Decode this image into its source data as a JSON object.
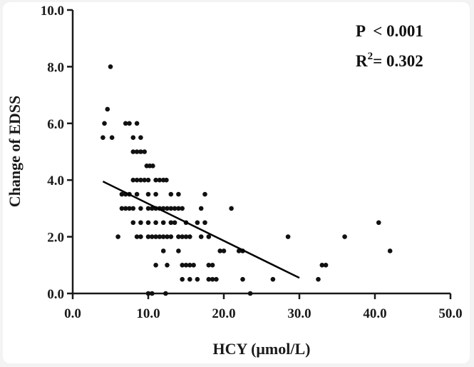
{
  "chart_data": {
    "type": "scatter",
    "xlabel": "HCY (μmol/L)",
    "ylabel": "Change of EDSS",
    "xlim": [
      0,
      50
    ],
    "ylim": [
      0,
      10
    ],
    "x_ticks": [
      0,
      10,
      20,
      30,
      40,
      50
    ],
    "y_ticks": [
      0,
      2,
      4,
      6,
      8,
      10
    ],
    "x_tick_labels": [
      "0.0",
      "10.0",
      "20.0",
      "30.0",
      "40.0",
      "50.0"
    ],
    "y_tick_labels": [
      "0.0",
      "2.0",
      "4.0",
      "6.0",
      "8.0",
      "10.0"
    ],
    "grid": false,
    "annotations": {
      "p_value": "P  < 0.001",
      "r2_prefix": "R",
      "r2_sup": "2",
      "r2_value": "= 0.302"
    },
    "regression_line": {
      "x": [
        4.0,
        30.0
      ],
      "y": [
        3.95,
        0.55
      ]
    },
    "points": [
      [
        5.0,
        8.0
      ],
      [
        4.6,
        6.5
      ],
      [
        4.2,
        6.0
      ],
      [
        4.0,
        5.5
      ],
      [
        5.2,
        5.5
      ],
      [
        7.0,
        6.0
      ],
      [
        7.5,
        6.0
      ],
      [
        8.5,
        6.0
      ],
      [
        8.0,
        5.5
      ],
      [
        9.0,
        5.5
      ],
      [
        8.5,
        5.0
      ],
      [
        9.0,
        5.0
      ],
      [
        9.5,
        5.0
      ],
      [
        8.0,
        5.0
      ],
      [
        9.8,
        4.5
      ],
      [
        10.2,
        4.5
      ],
      [
        10.6,
        4.5
      ],
      [
        8.0,
        4.0
      ],
      [
        8.5,
        4.0
      ],
      [
        9.0,
        4.0
      ],
      [
        9.5,
        4.0
      ],
      [
        10.0,
        4.0
      ],
      [
        11.0,
        4.0
      ],
      [
        11.5,
        4.0
      ],
      [
        12.0,
        4.0
      ],
      [
        12.4,
        4.0
      ],
      [
        6.5,
        3.5
      ],
      [
        7.0,
        3.5
      ],
      [
        7.5,
        3.5
      ],
      [
        8.5,
        3.5
      ],
      [
        10.0,
        3.5
      ],
      [
        11.0,
        3.5
      ],
      [
        13.0,
        3.5
      ],
      [
        14.0,
        3.5
      ],
      [
        17.5,
        3.5
      ],
      [
        6.5,
        3.0
      ],
      [
        7.0,
        3.0
      ],
      [
        7.5,
        3.0
      ],
      [
        8.0,
        3.0
      ],
      [
        9.0,
        3.0
      ],
      [
        10.0,
        3.0
      ],
      [
        10.5,
        3.0
      ],
      [
        11.0,
        3.0
      ],
      [
        11.5,
        3.0
      ],
      [
        12.0,
        3.0
      ],
      [
        12.5,
        3.0
      ],
      [
        13.0,
        3.0
      ],
      [
        13.5,
        3.0
      ],
      [
        14.0,
        3.0
      ],
      [
        14.5,
        3.0
      ],
      [
        17.0,
        3.0
      ],
      [
        21.0,
        3.0
      ],
      [
        8.0,
        2.5
      ],
      [
        9.0,
        2.5
      ],
      [
        10.0,
        2.5
      ],
      [
        11.0,
        2.5
      ],
      [
        12.0,
        2.5
      ],
      [
        13.0,
        2.5
      ],
      [
        13.5,
        2.5
      ],
      [
        15.0,
        2.5
      ],
      [
        16.5,
        2.5
      ],
      [
        17.5,
        2.5
      ],
      [
        6.0,
        2.0
      ],
      [
        8.5,
        2.0
      ],
      [
        9.0,
        2.0
      ],
      [
        10.0,
        2.0
      ],
      [
        10.5,
        2.0
      ],
      [
        11.0,
        2.0
      ],
      [
        11.5,
        2.0
      ],
      [
        12.0,
        2.0
      ],
      [
        12.5,
        2.0
      ],
      [
        13.0,
        2.0
      ],
      [
        14.0,
        2.0
      ],
      [
        14.5,
        2.0
      ],
      [
        15.0,
        2.0
      ],
      [
        15.5,
        2.0
      ],
      [
        17.0,
        2.0
      ],
      [
        18.0,
        2.0
      ],
      [
        28.5,
        2.0
      ],
      [
        36.0,
        2.0
      ],
      [
        40.5,
        2.5
      ],
      [
        12.0,
        1.5
      ],
      [
        14.0,
        1.5
      ],
      [
        19.5,
        1.5
      ],
      [
        20.0,
        1.5
      ],
      [
        22.0,
        1.5
      ],
      [
        22.5,
        1.5
      ],
      [
        42.0,
        1.5
      ],
      [
        11.0,
        1.0
      ],
      [
        12.5,
        1.0
      ],
      [
        14.5,
        1.0
      ],
      [
        15.0,
        1.0
      ],
      [
        15.5,
        1.0
      ],
      [
        16.0,
        1.0
      ],
      [
        18.0,
        1.0
      ],
      [
        18.5,
        1.0
      ],
      [
        33.0,
        1.0
      ],
      [
        33.5,
        1.0
      ],
      [
        14.5,
        0.5
      ],
      [
        15.5,
        0.5
      ],
      [
        16.5,
        0.5
      ],
      [
        18.0,
        0.5
      ],
      [
        18.5,
        0.5
      ],
      [
        19.0,
        0.5
      ],
      [
        22.5,
        0.5
      ],
      [
        26.5,
        0.5
      ],
      [
        32.5,
        0.5
      ],
      [
        10.0,
        0.0
      ],
      [
        10.5,
        0.0
      ],
      [
        12.3,
        0.0
      ],
      [
        23.5,
        0.0
      ]
    ]
  }
}
